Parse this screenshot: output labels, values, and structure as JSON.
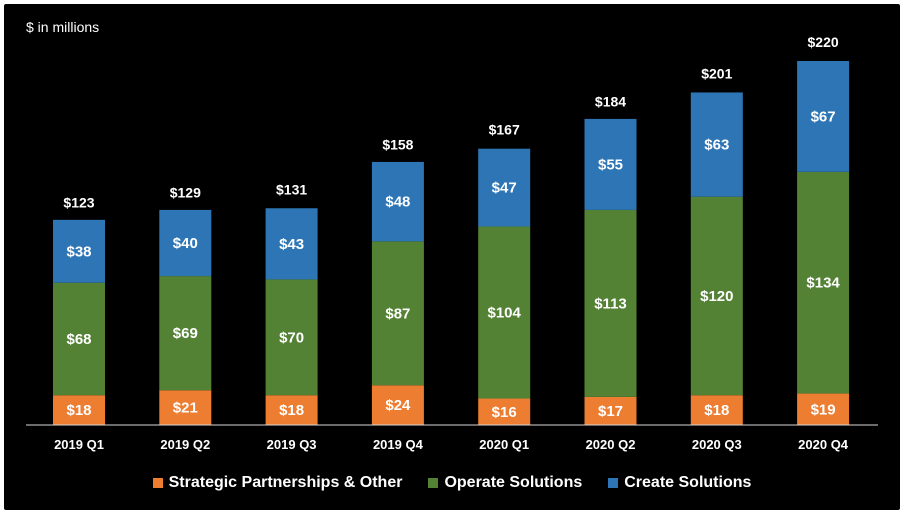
{
  "chart_data": {
    "type": "bar",
    "stacked": true,
    "unit_label": "$ in millions",
    "categories": [
      "2019 Q1",
      "2019 Q2",
      "2019 Q3",
      "2019 Q4",
      "2020 Q1",
      "2020 Q2",
      "2020 Q3",
      "2020 Q4"
    ],
    "series": [
      {
        "name": "Strategic Partnerships & Other",
        "color": "#ED7D31",
        "values": [
          18,
          21,
          18,
          24,
          16,
          17,
          18,
          19
        ],
        "labels": [
          "$18",
          "$21",
          "$18",
          "$24",
          "$16",
          "$17",
          "$18",
          "$19"
        ]
      },
      {
        "name": "Operate Solutions",
        "color": "#548235",
        "values": [
          68,
          69,
          70,
          87,
          104,
          113,
          120,
          134
        ],
        "labels": [
          "$68",
          "$69",
          "$70",
          "$87",
          "$104",
          "$113",
          "$120",
          "$134"
        ]
      },
      {
        "name": "Create Solutions",
        "color": "#2E75B6",
        "values": [
          38,
          40,
          43,
          48,
          47,
          55,
          63,
          67
        ],
        "labels": [
          "$38",
          "$40",
          "$43",
          "$48",
          "$47",
          "$55",
          "$63",
          "$67"
        ]
      }
    ],
    "totals": [
      123,
      129,
      131,
      158,
      167,
      184,
      201,
      220
    ],
    "total_labels": [
      "$123",
      "$129",
      "$131",
      "$158",
      "$167",
      "$184",
      "$201",
      "$220"
    ],
    "ylim": [
      0,
      220
    ],
    "legend_position": "bottom"
  }
}
